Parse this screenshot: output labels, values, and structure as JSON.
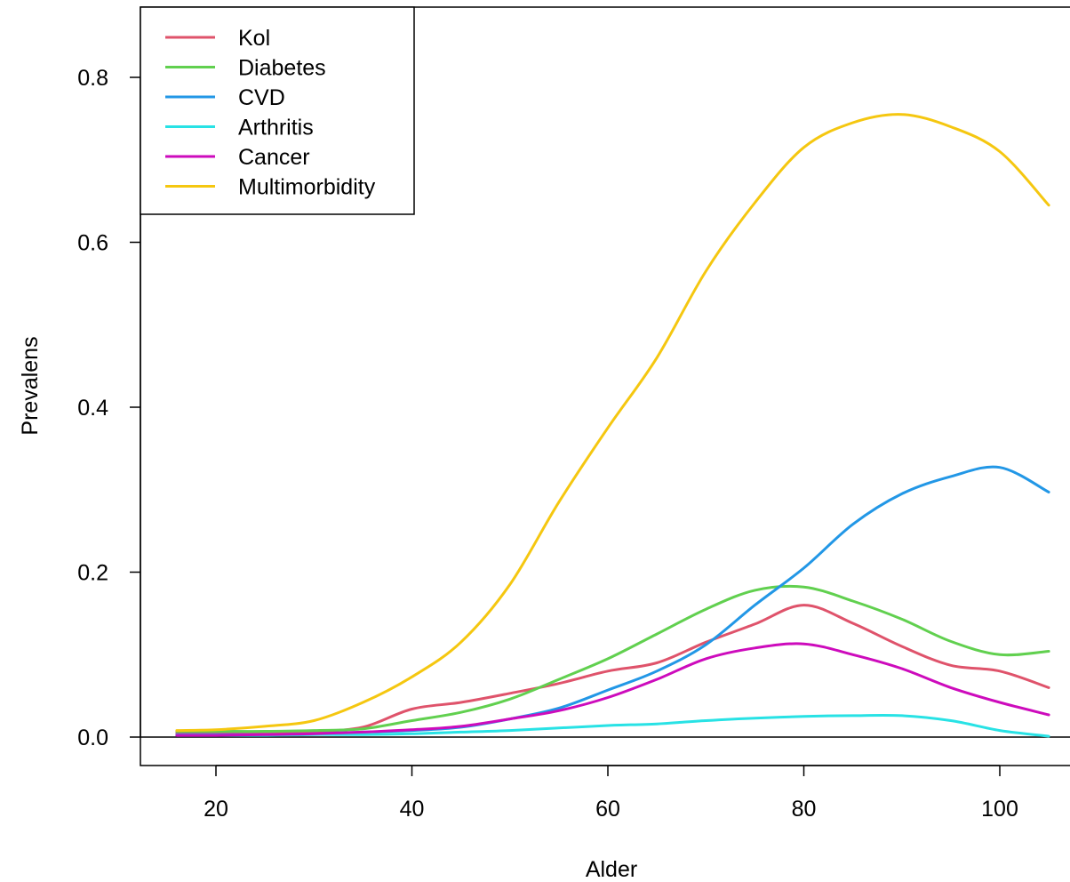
{
  "chart_data": {
    "type": "line",
    "title": "",
    "xlabel": "Alder",
    "ylabel": "Prevalens",
    "xlim": [
      12.7,
      105
    ],
    "ylim": [
      -0.034,
      0.886
    ],
    "xticks": [
      20,
      40,
      60,
      80,
      100
    ],
    "xtick_labels": [
      "20",
      "40",
      "60",
      "80",
      "100"
    ],
    "yticks": [
      0.0,
      0.2,
      0.4,
      0.6,
      0.8
    ],
    "ytick_labels": [
      "0.0",
      "0.2",
      "0.4",
      "0.6",
      "0.8"
    ],
    "hline_at_y": 0,
    "legend_position": "top-left",
    "grid": false,
    "x": [
      16,
      20,
      25,
      30,
      35,
      40,
      45,
      50,
      55,
      60,
      65,
      70,
      75,
      80,
      85,
      90,
      95,
      100,
      105
    ],
    "series": [
      {
        "name": "Kol",
        "color": "#DF536B",
        "values": [
          0.005,
          0.005,
          0.006,
          0.007,
          0.012,
          0.034,
          0.042,
          0.053,
          0.065,
          0.08,
          0.09,
          0.115,
          0.137,
          0.16,
          0.138,
          0.11,
          0.087,
          0.08,
          0.06
        ]
      },
      {
        "name": "Diabetes",
        "color": "#61D04F",
        "values": [
          0.007,
          0.007,
          0.007,
          0.008,
          0.01,
          0.02,
          0.03,
          0.046,
          0.07,
          0.095,
          0.125,
          0.155,
          0.178,
          0.182,
          0.165,
          0.143,
          0.116,
          0.1,
          0.104
        ]
      },
      {
        "name": "CVD",
        "color": "#2297E6",
        "values": [
          0.003,
          0.003,
          0.003,
          0.004,
          0.006,
          0.008,
          0.012,
          0.022,
          0.035,
          0.057,
          0.08,
          0.112,
          0.16,
          0.205,
          0.258,
          0.295,
          0.316,
          0.327,
          0.297
        ]
      },
      {
        "name": "Arthritis",
        "color": "#28E2E5",
        "values": [
          0.002,
          0.002,
          0.002,
          0.003,
          0.003,
          0.004,
          0.006,
          0.008,
          0.011,
          0.014,
          0.016,
          0.02,
          0.023,
          0.025,
          0.026,
          0.026,
          0.02,
          0.008,
          0.001
        ]
      },
      {
        "name": "Cancer",
        "color": "#CD0BBC",
        "values": [
          0.002,
          0.002,
          0.003,
          0.004,
          0.006,
          0.009,
          0.013,
          0.022,
          0.032,
          0.048,
          0.07,
          0.095,
          0.108,
          0.113,
          0.1,
          0.083,
          0.06,
          0.042,
          0.027
        ]
      },
      {
        "name": "Multimorbidity",
        "color": "#F5C710",
        "values": [
          0.008,
          0.009,
          0.013,
          0.02,
          0.042,
          0.073,
          0.115,
          0.185,
          0.285,
          0.375,
          0.46,
          0.565,
          0.648,
          0.715,
          0.745,
          0.755,
          0.74,
          0.71,
          0.645
        ]
      }
    ]
  }
}
